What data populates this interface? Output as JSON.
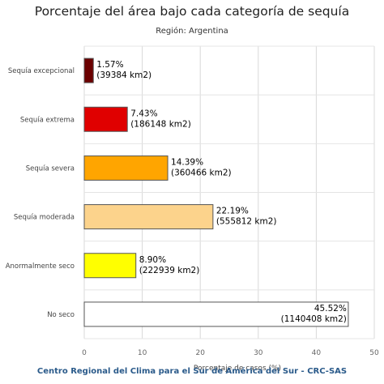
{
  "chart_data": {
    "type": "bar",
    "orientation": "horizontal",
    "title": "Porcentaje del área bajo cada categoría de sequía",
    "subtitle": "Región: Argentina",
    "xlabel": "Porcentaje de casos (%)",
    "ylabel": "",
    "xlim": [
      0,
      50
    ],
    "xticks": [
      "0",
      "10",
      "20",
      "30",
      "40",
      "50"
    ],
    "grid": true,
    "categories": [
      "Sequía excepcional",
      "Sequía extrema",
      "Sequía severa",
      "Sequía moderada",
      "Anormalmente seco",
      "No seco"
    ],
    "values": [
      1.57,
      7.43,
      14.39,
      22.19,
      8.9,
      45.52
    ],
    "labels": [
      [
        "1.57%",
        "(39384 km2)"
      ],
      [
        "7.43%",
        "(186148 km2)"
      ],
      [
        "14.39%",
        "(360466 km2)"
      ],
      [
        "22.19%",
        "(555812 km2)"
      ],
      [
        "8.90%",
        "(222939 km2)"
      ],
      [
        "45.52%",
        "(1140408 km2)"
      ]
    ],
    "colors": [
      "#6b0000",
      "#e00000",
      "#ffa500",
      "#fcd38c",
      "#ffff00",
      "#ffffff"
    ]
  },
  "footer": "Centro Regional del Clima para el Sur de América del Sur - CRC-SAS"
}
